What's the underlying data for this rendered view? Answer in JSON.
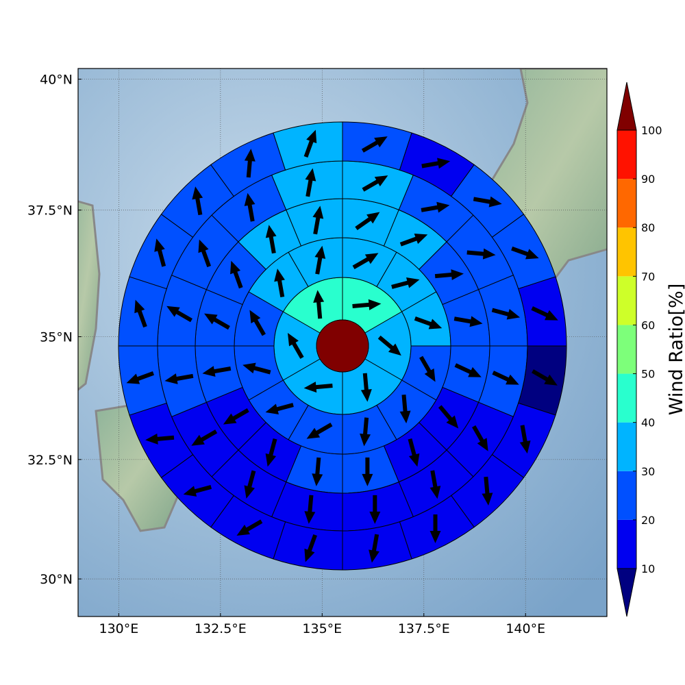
{
  "chart_data": {
    "type": "polar-grid-map",
    "xlim": [
      129.0,
      142.0
    ],
    "ylim": [
      29.2,
      40.2
    ],
    "xticks": [
      {
        "value": 130,
        "label": "130°E"
      },
      {
        "value": 132.5,
        "label": "132.5°E"
      },
      {
        "value": 135,
        "label": "135°E"
      },
      {
        "value": 137.5,
        "label": "137.5°E"
      },
      {
        "value": 140,
        "label": "140°E"
      }
    ],
    "yticks": [
      {
        "value": 30,
        "label": "30°N"
      },
      {
        "value": 32.5,
        "label": "32.5°N"
      },
      {
        "value": 35,
        "label": "35°N"
      },
      {
        "value": 37.5,
        "label": "37.5°N"
      },
      {
        "value": 40,
        "label": "40°N"
      }
    ],
    "grid": true,
    "center_value": 105,
    "rings": [
      {
        "values": [
          45,
          35,
          35,
          35,
          35,
          45
        ],
        "directions": [
          85,
          130,
          175,
          265,
          330,
          355
        ]
      },
      {
        "values": [
          35,
          35,
          35,
          25,
          25,
          25,
          25,
          25,
          25,
          25,
          35,
          35
        ],
        "directions": [
          60,
          75,
          110,
          150,
          175,
          185,
          240,
          255,
          285,
          330,
          350,
          10
        ]
      },
      {
        "values": [
          35,
          35,
          25,
          25,
          25,
          15,
          15,
          25,
          25,
          15,
          15,
          25,
          25,
          25,
          35,
          35
        ],
        "directions": [
          55,
          70,
          85,
          100,
          115,
          140,
          165,
          180,
          185,
          195,
          240,
          260,
          300,
          340,
          350,
          10
        ]
      },
      {
        "values": [
          35,
          25,
          25,
          25,
          25,
          15,
          15,
          15,
          15,
          15,
          15,
          25,
          25,
          25,
          25,
          35
        ],
        "directions": [
          60,
          80,
          95,
          105,
          115,
          150,
          170,
          180,
          185,
          195,
          240,
          260,
          300,
          340,
          350,
          10
        ]
      },
      {
        "values": [
          25,
          15,
          25,
          25,
          15,
          5,
          15,
          15,
          15,
          15,
          15,
          15,
          15,
          15,
          25,
          25,
          25,
          25,
          25,
          35
        ],
        "directions": [
          60,
          80,
          100,
          110,
          115,
          120,
          170,
          175,
          180,
          190,
          200,
          240,
          255,
          265,
          250,
          340,
          345,
          350,
          5,
          20
        ]
      }
    ],
    "colorbar": {
      "label": "Wind Ratio[%]",
      "ticks": [
        10,
        20,
        30,
        40,
        50,
        60,
        70,
        80,
        90,
        100
      ],
      "colors": [
        "#0000f0",
        "#0050ff",
        "#00b4ff",
        "#29ffce",
        "#7dff7a",
        "#ceff29",
        "#ffc400",
        "#ff6800",
        "#ff1200"
      ],
      "under_color": "#000080",
      "over_color": "#800000"
    }
  }
}
